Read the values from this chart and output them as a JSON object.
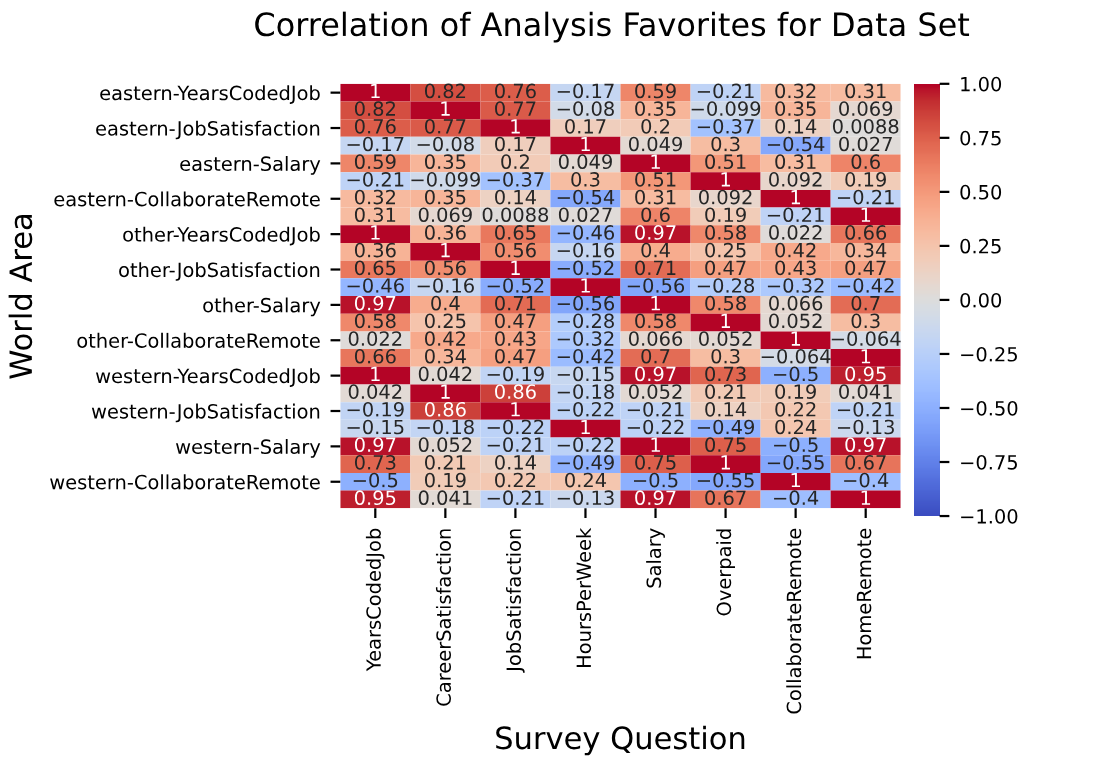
{
  "chart_data": {
    "type": "heatmap",
    "title": "Correlation of Analysis Favorites for Data Set",
    "xlabel": "Survey Question",
    "ylabel": "World Area",
    "categories": [
      "YearsCodedJob",
      "CareerSatisfaction",
      "JobSatisfaction",
      "HoursPerWeek",
      "Salary",
      "Overpaid",
      "CollaborateRemote",
      "HomeRemote"
    ],
    "y_categories": [
      "eastern-YearsCodedJob",
      null,
      "eastern-JobSatisfaction",
      null,
      "eastern-Salary",
      null,
      "eastern-CollaborateRemote",
      null,
      "other-YearsCodedJob",
      null,
      "other-JobSatisfaction",
      null,
      "other-Salary",
      null,
      "other-CollaborateRemote",
      null,
      "western-YearsCodedJob",
      null,
      "western-JobSatisfaction",
      null,
      "western-Salary",
      null,
      "western-CollaborateRemote",
      null
    ],
    "cells": [
      [
        1,
        0.82,
        0.76,
        -0.17,
        0.59,
        -0.21,
        0.32,
        0.31
      ],
      [
        0.82,
        1,
        0.77,
        -0.08,
        0.35,
        -0.099,
        0.35,
        0.069
      ],
      [
        0.76,
        0.77,
        1,
        0.17,
        0.2,
        -0.37,
        0.14,
        0.0088
      ],
      [
        -0.17,
        -0.08,
        0.17,
        1,
        0.049,
        0.3,
        -0.54,
        0.027
      ],
      [
        0.59,
        0.35,
        0.2,
        0.049,
        1,
        0.51,
        0.31,
        0.6
      ],
      [
        -0.21,
        -0.099,
        -0.37,
        0.3,
        0.51,
        1,
        0.092,
        0.19
      ],
      [
        0.32,
        0.35,
        0.14,
        -0.54,
        0.31,
        0.092,
        1,
        -0.21
      ],
      [
        0.31,
        0.069,
        0.0088,
        0.027,
        0.6,
        0.19,
        -0.21,
        1
      ],
      [
        1,
        0.36,
        0.65,
        -0.46,
        0.97,
        0.58,
        0.022,
        0.66
      ],
      [
        0.36,
        1,
        0.56,
        -0.16,
        0.4,
        0.25,
        0.42,
        0.34
      ],
      [
        0.65,
        0.56,
        1,
        -0.52,
        0.71,
        0.47,
        0.43,
        0.47
      ],
      [
        -0.46,
        -0.16,
        -0.52,
        1,
        -0.56,
        -0.28,
        -0.32,
        -0.42
      ],
      [
        0.97,
        0.4,
        0.71,
        -0.56,
        1,
        0.58,
        0.066,
        0.7
      ],
      [
        0.58,
        0.25,
        0.47,
        -0.28,
        0.58,
        1,
        0.052,
        0.3
      ],
      [
        0.022,
        0.42,
        0.43,
        -0.32,
        0.066,
        0.052,
        1,
        -0.064
      ],
      [
        0.66,
        0.34,
        0.47,
        -0.42,
        0.7,
        0.3,
        -0.064,
        1
      ],
      [
        1,
        0.042,
        -0.19,
        -0.15,
        0.97,
        0.73,
        -0.5,
        0.95
      ],
      [
        0.042,
        1,
        0.86,
        -0.18,
        0.052,
        0.21,
        0.19,
        0.041
      ],
      [
        -0.19,
        0.86,
        1,
        -0.22,
        -0.21,
        0.14,
        0.22,
        -0.21
      ],
      [
        -0.15,
        -0.18,
        -0.22,
        1,
        -0.22,
        -0.49,
        0.24,
        -0.13
      ],
      [
        0.97,
        0.052,
        -0.21,
        -0.22,
        1,
        0.75,
        -0.5,
        0.97
      ],
      [
        0.73,
        0.21,
        0.14,
        -0.49,
        0.75,
        1,
        -0.55,
        0.67
      ],
      [
        -0.5,
        0.19,
        0.22,
        0.24,
        -0.5,
        -0.55,
        1,
        -0.4
      ],
      [
        0.95,
        0.041,
        -0.21,
        -0.13,
        0.97,
        0.67,
        -0.4,
        1
      ]
    ],
    "data_labels": true,
    "clim": [
      -1,
      1
    ],
    "cticks": [
      {
        "value": -1,
        "label": "−1.00"
      },
      {
        "value": -0.75,
        "label": "−0.75"
      },
      {
        "value": -0.5,
        "label": "−0.50"
      },
      {
        "value": -0.25,
        "label": "−0.25"
      },
      {
        "value": 0,
        "label": "0.00"
      },
      {
        "value": 0.25,
        "label": "0.25"
      },
      {
        "value": 0.5,
        "label": "0.50"
      },
      {
        "value": 0.75,
        "label": "0.75"
      },
      {
        "value": 1,
        "label": "1.00"
      }
    ]
  }
}
